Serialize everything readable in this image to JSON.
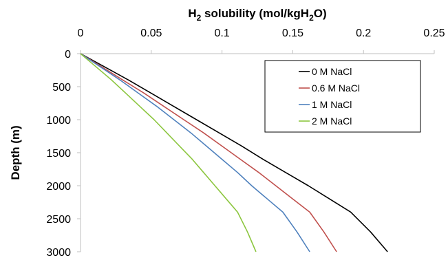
{
  "chart_data": {
    "type": "line",
    "xlabel": {
      "prefix": "H",
      "sub1": "2",
      "middle": " solubility (mol/kgH",
      "sub2": "2",
      "suffix": "O)"
    },
    "ylabel": "Depth (m)",
    "xlim": [
      0,
      0.25
    ],
    "ylim": [
      0,
      3000
    ],
    "y_inverted": true,
    "x_axis_position": "top",
    "grid": false,
    "legend_position": "top-right",
    "x_ticks": [
      "0",
      "0.05",
      "0.1",
      "0.15",
      "0.2",
      "0.25"
    ],
    "x_tick_values": [
      0,
      0.05,
      0.1,
      0.15,
      0.2,
      0.25
    ],
    "y_ticks": [
      "0",
      "500",
      "1000",
      "1500",
      "2000",
      "2500",
      "3000"
    ],
    "y_tick_values": [
      0,
      500,
      1000,
      1500,
      2000,
      2500,
      3000
    ],
    "series": [
      {
        "name": "0 M NaCl",
        "color": "#000000",
        "x": [
          0,
          0.017,
          0.034,
          0.05,
          0.066,
          0.082,
          0.098,
          0.114,
          0.129,
          0.145,
          0.161,
          0.176,
          0.191,
          0.205,
          0.217
        ],
        "y": [
          0,
          200,
          400,
          600,
          800,
          1000,
          1200,
          1400,
          1600,
          1800,
          2000,
          2200,
          2400,
          2700,
          3000
        ]
      },
      {
        "name": "0.6 M NaCl",
        "color": "#c0504d",
        "x": [
          0,
          0.015,
          0.03,
          0.045,
          0.059,
          0.073,
          0.087,
          0.1,
          0.113,
          0.126,
          0.138,
          0.15,
          0.162,
          0.172,
          0.181
        ],
        "y": [
          0,
          200,
          400,
          600,
          800,
          1000,
          1200,
          1400,
          1600,
          1800,
          2000,
          2200,
          2400,
          2700,
          3000
        ]
      },
      {
        "name": "1 M NaCl",
        "color": "#4f81bd",
        "x": [
          0,
          0.014,
          0.028,
          0.041,
          0.054,
          0.066,
          0.078,
          0.089,
          0.1,
          0.111,
          0.121,
          0.132,
          0.143,
          0.153,
          0.162
        ],
        "y": [
          0,
          200,
          400,
          600,
          800,
          1000,
          1200,
          1400,
          1600,
          1800,
          2000,
          2200,
          2400,
          2700,
          3000
        ]
      },
      {
        "name": "2 M NaCl",
        "color": "#8cc63f",
        "x": [
          0,
          0.011,
          0.022,
          0.032,
          0.042,
          0.052,
          0.061,
          0.07,
          0.079,
          0.087,
          0.095,
          0.103,
          0.111,
          0.118,
          0.124
        ],
        "y": [
          0,
          200,
          400,
          600,
          800,
          1000,
          1200,
          1400,
          1600,
          1800,
          2000,
          2200,
          2400,
          2700,
          3000
        ]
      }
    ]
  }
}
